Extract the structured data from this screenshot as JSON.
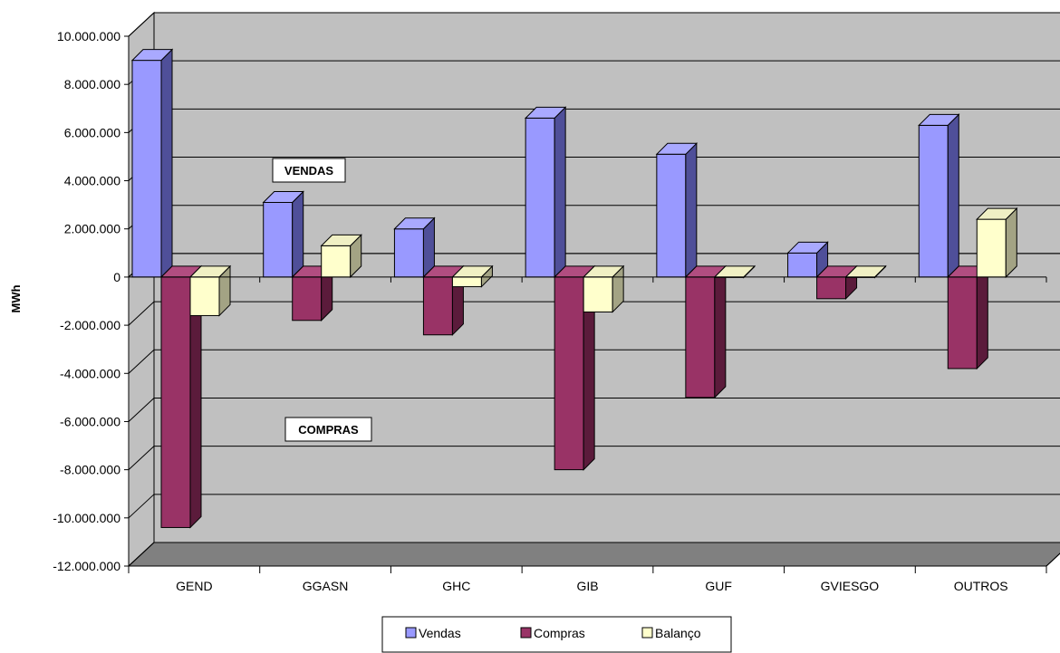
{
  "chart_data": {
    "type": "bar",
    "title": "",
    "xlabel": "",
    "ylabel": "MWh",
    "ylim": [
      -12000000,
      10000000
    ],
    "y_ticks": [
      10000000,
      8000000,
      6000000,
      4000000,
      2000000,
      0,
      -2000000,
      -4000000,
      -6000000,
      -8000000,
      -10000000,
      -12000000
    ],
    "y_tick_labels": [
      "10.000.000",
      "8.000.000",
      "6.000.000",
      "4.000.000",
      "2.000.000",
      "0",
      "-2.000.000",
      "-4.000.000",
      "-6.000.000",
      "-8.000.000",
      "-10.000.000",
      "-12.000.000"
    ],
    "categories": [
      "GEND",
      "GGASN",
      "GHC",
      "GIB",
      "GUF",
      "GVIESGO",
      "OUTROS"
    ],
    "series": [
      {
        "name": "Vendas",
        "values": [
          9000000,
          3100000,
          2000000,
          6600000,
          5100000,
          1000000,
          6300000
        ]
      },
      {
        "name": "Compras",
        "values": [
          -10400000,
          -1800000,
          -2400000,
          -8000000,
          -5000000,
          -900000,
          -3800000
        ]
      },
      {
        "name": "Balanço",
        "values": [
          -1600000,
          1300000,
          -400000,
          -1450000,
          0,
          0,
          2400000
        ]
      }
    ],
    "annotations": [
      "VENDAS",
      "COMPRAS"
    ],
    "grid": true,
    "legend_position": "bottom"
  },
  "colors": {
    "plot_background": "#c0c0c0",
    "floor": "#808080",
    "Vendas": [
      "#9999ff",
      "#a9a9ff",
      "#4f4f99"
    ],
    "Compras": [
      "#993366",
      "#b14d80",
      "#5b1b3b"
    ],
    "Balanço": [
      "#ffffcc",
      "#f0f0c4",
      "#a3a384"
    ]
  }
}
